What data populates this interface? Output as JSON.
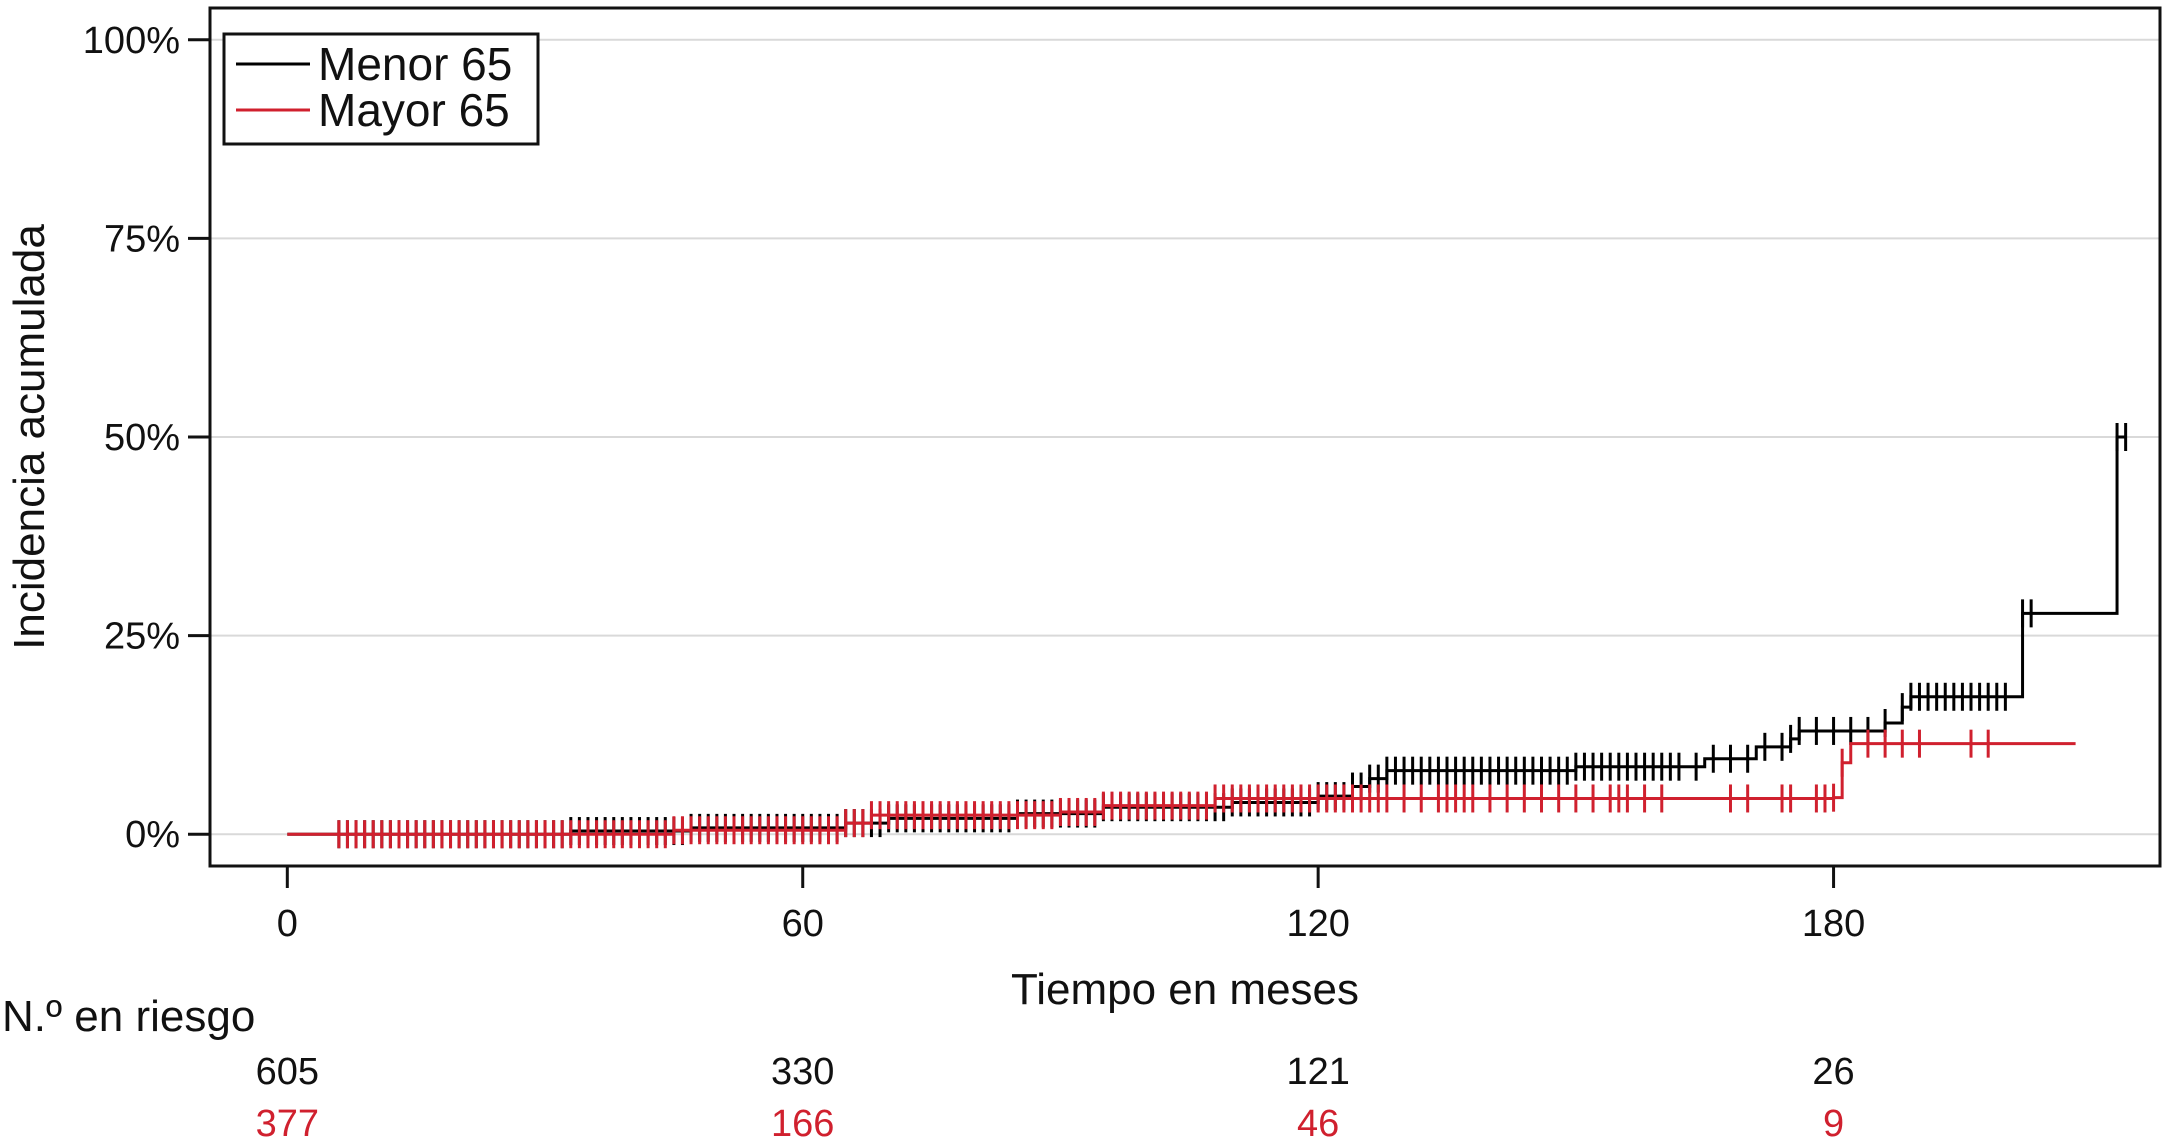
{
  "chart_data": {
    "type": "line",
    "title": "",
    "xlabel": "Tiempo en meses",
    "ylabel": "Incidencia acumulada",
    "xlim": [
      -9,
      218
    ],
    "ylim": [
      -4,
      104
    ],
    "x_ticks": [
      0,
      60,
      120,
      180
    ],
    "y_ticks": [
      0,
      25,
      50,
      75,
      100
    ],
    "y_tick_labels": [
      "0%",
      "25%",
      "50%",
      "75%",
      "100%"
    ],
    "grid": "horizontal",
    "legend_position": "top-left",
    "series": [
      {
        "name": "Menor 65",
        "color": "#000000",
        "steps": [
          [
            0,
            0
          ],
          [
            33,
            0.4
          ],
          [
            47,
            0.8
          ],
          [
            65,
            1.4
          ],
          [
            70,
            2.0
          ],
          [
            85,
            2.6
          ],
          [
            95,
            3.4
          ],
          [
            110,
            4.0
          ],
          [
            120,
            4.8
          ],
          [
            124,
            6.0
          ],
          [
            126,
            7.0
          ],
          [
            128,
            8.0
          ],
          [
            150,
            8.5
          ],
          [
            165,
            9.5
          ],
          [
            171,
            11.0
          ],
          [
            175,
            12.0
          ],
          [
            176,
            13.0
          ],
          [
            186,
            14.0
          ],
          [
            188,
            16.0
          ],
          [
            189,
            17.3
          ],
          [
            202,
            27.8
          ],
          [
            213,
            50.0
          ],
          [
            214,
            50.0
          ]
        ],
        "censor_ticks": [
          6,
          7,
          8,
          9,
          10,
          11,
          12,
          13,
          14,
          15,
          16,
          17,
          18,
          19,
          20,
          21,
          22,
          23,
          24,
          25,
          26,
          27,
          28,
          29,
          30,
          31,
          32,
          33,
          34,
          35,
          36,
          37,
          38,
          39,
          40,
          41,
          42,
          43,
          44,
          45,
          46,
          47,
          48,
          49,
          50,
          51,
          52,
          53,
          54,
          55,
          56,
          57,
          58,
          59,
          60,
          61,
          62,
          63,
          64,
          65,
          66,
          67,
          68,
          69,
          70,
          71,
          72,
          73,
          74,
          75,
          76,
          77,
          78,
          79,
          80,
          81,
          82,
          83,
          84,
          85,
          86,
          87,
          88,
          89,
          90,
          91,
          92,
          93,
          94,
          95,
          96,
          97,
          98,
          99,
          100,
          101,
          102,
          103,
          104,
          105,
          106,
          107,
          108,
          109,
          110,
          111,
          112,
          113,
          114,
          115,
          116,
          117,
          118,
          119,
          120,
          121,
          122,
          123,
          124,
          125,
          126,
          127,
          128,
          129,
          130,
          131,
          132,
          133,
          134,
          135,
          136,
          137,
          138,
          139,
          140,
          141,
          142,
          143,
          144,
          145,
          146,
          147,
          148,
          149,
          150,
          151,
          152,
          153,
          154,
          155,
          156,
          157,
          158,
          159,
          160,
          161,
          162,
          164,
          166,
          168,
          170,
          172,
          174,
          175,
          176,
          178,
          180,
          182,
          184,
          186,
          188,
          189,
          190,
          191,
          192,
          193,
          194,
          195,
          196,
          197,
          198,
          199,
          200,
          202,
          203,
          213,
          214
        ]
      },
      {
        "name": "Mayor 65",
        "color": "#d0202e",
        "steps": [
          [
            0,
            0
          ],
          [
            45,
            0.5
          ],
          [
            65,
            1.4
          ],
          [
            68,
            2.4
          ],
          [
            90,
            2.8
          ],
          [
            95,
            3.6
          ],
          [
            108,
            4.5
          ],
          [
            180,
            4.6
          ],
          [
            181,
            9.0
          ],
          [
            182,
            11.4
          ],
          [
            208,
            11.6
          ]
        ],
        "censor_ticks": [
          6,
          7,
          8,
          9,
          10,
          11,
          12,
          13,
          14,
          15,
          16,
          17,
          18,
          19,
          20,
          21,
          22,
          23,
          24,
          25,
          26,
          27,
          28,
          29,
          30,
          31,
          32,
          33,
          34,
          35,
          36,
          37,
          38,
          39,
          40,
          41,
          42,
          43,
          44,
          45,
          46,
          47,
          48,
          49,
          50,
          51,
          52,
          53,
          54,
          55,
          56,
          57,
          58,
          59,
          60,
          61,
          62,
          63,
          64,
          65,
          66,
          67,
          68,
          69,
          70,
          71,
          72,
          73,
          74,
          75,
          76,
          77,
          78,
          79,
          80,
          81,
          82,
          83,
          84,
          85,
          86,
          87,
          88,
          89,
          90,
          91,
          92,
          93,
          94,
          95,
          96,
          97,
          98,
          99,
          100,
          101,
          102,
          103,
          104,
          105,
          106,
          107,
          108,
          109,
          110,
          111,
          112,
          113,
          114,
          115,
          116,
          117,
          118,
          119,
          120,
          121,
          122,
          123,
          124,
          125,
          126,
          127,
          128,
          130,
          132,
          134,
          135,
          136,
          137,
          138,
          140,
          142,
          144,
          146,
          148,
          150,
          152,
          154,
          155,
          156,
          158,
          160,
          168,
          170,
          174,
          175,
          178,
          179,
          180,
          181,
          184,
          186,
          188,
          190,
          196,
          198
        ]
      }
    ]
  },
  "legend": {
    "items": [
      {
        "label": "Menor 65",
        "color": "#000000"
      },
      {
        "label": "Mayor 65",
        "color": "#d0202e"
      }
    ]
  },
  "risk_table": {
    "title": "N.º en riesgo",
    "times": [
      0,
      60,
      120,
      180
    ],
    "rows": [
      {
        "group": "Menor 65",
        "color": "#111111",
        "values": [
          "605",
          "330",
          "121",
          "26"
        ]
      },
      {
        "group": "Mayor 65",
        "color": "#d0202e",
        "values": [
          "377",
          "166",
          "46",
          "9"
        ]
      }
    ]
  }
}
